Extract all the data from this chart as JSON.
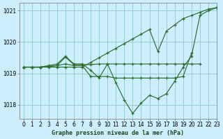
{
  "background_color": "#cceeff",
  "grid_color": "#99cccc",
  "line_color": "#2d6e2d",
  "title": "Graphe pression niveau de la mer (hPa)",
  "xlim": [
    -0.5,
    23
  ],
  "ylim": [
    1017.55,
    1021.25
  ],
  "yticks": [
    1018,
    1019,
    1020,
    1021
  ],
  "xtick_labels": [
    "0",
    "1",
    "2",
    "3",
    "4",
    "5",
    "6",
    "7",
    "8",
    "9",
    "10",
    "11",
    "12",
    "13",
    "14",
    "15",
    "16",
    "17",
    "18",
    "19",
    "20",
    "21",
    "22",
    "23"
  ],
  "xticks": [
    0,
    1,
    2,
    3,
    4,
    5,
    6,
    7,
    8,
    9,
    10,
    11,
    12,
    13,
    14,
    15,
    16,
    17,
    18,
    19,
    20,
    21,
    22,
    23
  ],
  "lines": [
    {
      "x": [
        0,
        1,
        2,
        3,
        4,
        5,
        6,
        7,
        8,
        9,
        10,
        11,
        12,
        13,
        14,
        15,
        16,
        17,
        18,
        19,
        20,
        21,
        22,
        23
      ],
      "y": [
        1019.2,
        1019.2,
        1019.2,
        1019.2,
        1019.2,
        1019.2,
        1019.2,
        1019.2,
        1019.35,
        1019.5,
        1019.65,
        1019.8,
        1019.95,
        1020.1,
        1020.25,
        1020.4,
        1019.7,
        1020.35,
        1020.55,
        1020.75,
        1020.85,
        1020.95,
        1021.05,
        1021.1
      ]
    },
    {
      "x": [
        0,
        1,
        2,
        3,
        4,
        5,
        6,
        7,
        8,
        9,
        10,
        11,
        12,
        13,
        14,
        15,
        16,
        17,
        18,
        19,
        20,
        21,
        22,
        23
      ],
      "y": [
        1019.2,
        1019.2,
        1019.2,
        1019.25,
        1019.3,
        1019.55,
        1019.3,
        1019.3,
        1019.1,
        1018.85,
        1019.3,
        1018.7,
        1018.15,
        1017.72,
        1018.05,
        1018.3,
        1018.2,
        1018.35,
        1018.75,
        1019.2,
        1019.55,
        1020.85,
        1021.0,
        1021.1
      ]
    },
    {
      "x": [
        0,
        1,
        2,
        3,
        4,
        5,
        6,
        7,
        8,
        9,
        10,
        11,
        12,
        13,
        14,
        15,
        16,
        17,
        18,
        19,
        20
      ],
      "y": [
        1019.2,
        1019.2,
        1019.2,
        1019.22,
        1019.25,
        1019.3,
        1019.25,
        1019.25,
        1018.9,
        1018.9,
        1018.9,
        1018.85,
        1018.85,
        1018.85,
        1018.85,
        1018.85,
        1018.85,
        1018.85,
        1018.85,
        1018.9,
        1019.65
      ]
    },
    {
      "x": [
        0,
        1,
        2,
        3,
        4,
        5,
        6,
        7,
        8,
        9,
        10,
        11,
        12,
        13,
        14,
        15,
        16,
        17,
        18,
        19,
        20,
        21,
        22,
        23
      ],
      "y": [
        1019.2,
        1019.2,
        1019.2,
        1019.22,
        1019.25,
        1019.52,
        1019.28,
        1019.28,
        1019.28,
        1019.3,
        1019.3,
        1019.3,
        1019.3,
        1019.3,
        1019.3,
        1019.3,
        1019.3,
        1019.3,
        1019.3,
        1019.3,
        1019.3,
        1019.3,
        null,
        null
      ]
    }
  ]
}
